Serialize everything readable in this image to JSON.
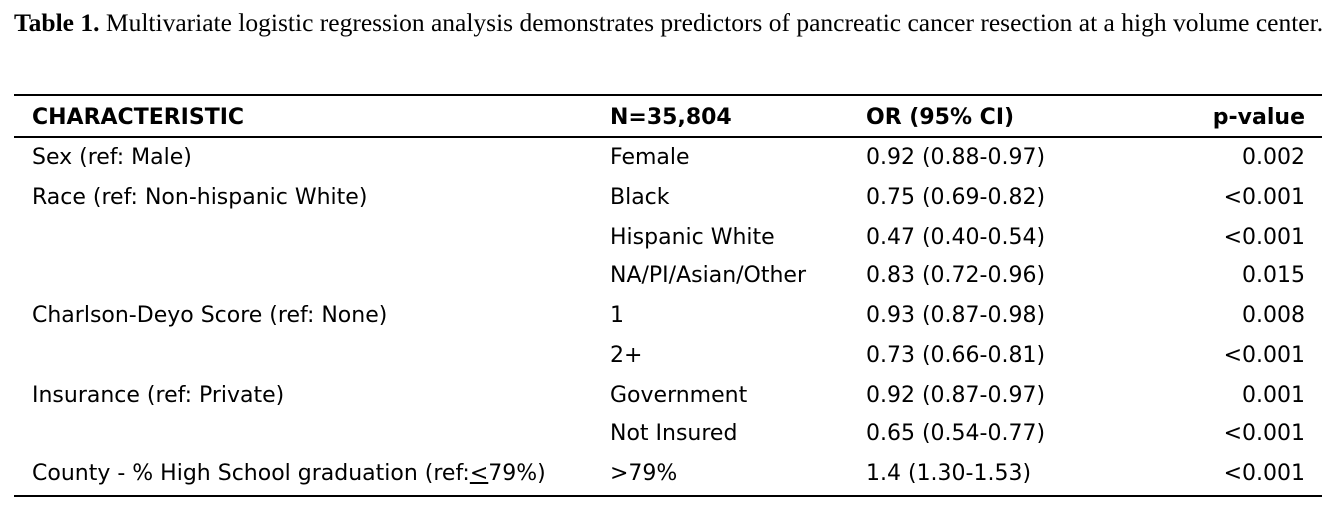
{
  "caption": {
    "label": "Table 1.",
    "text": " Multivariate logistic regression analysis demonstrates predictors of pancreatic cancer resection at a high volume center."
  },
  "table": {
    "headers": [
      "CHARACTERISTIC",
      "N=35,804",
      "OR (95% CI)",
      "p-value"
    ],
    "rows": [
      {
        "characteristic": "Sex (ref: Male)",
        "n": "Female",
        "or": "0.92 (0.88-0.97)",
        "p": "0.002"
      },
      {
        "characteristic": "Race (ref: Non-hispanic White)",
        "n": "Black",
        "or": "0.75 (0.69-0.82)",
        "p": "<0.001"
      },
      {
        "characteristic": "",
        "n": "Hispanic White",
        "or": "0.47 (0.40-0.54)",
        "p": "<0.001"
      },
      {
        "characteristic": "",
        "n": "NA/PI/Asian/Other",
        "or": "0.83 (0.72-0.96)",
        "p": "0.015"
      },
      {
        "characteristic": "Charlson-Deyo Score (ref: None)",
        "n": "1",
        "or": "0.93 (0.87-0.98)",
        "p": "0.008"
      },
      {
        "characteristic": "",
        "n": "2+",
        "or": "0.73 (0.66-0.81)",
        "p": "<0.001"
      },
      {
        "characteristic": "Insurance (ref: Private)",
        "n": "Government",
        "or": "0.92 (0.87-0.97)",
        "p": "0.001"
      },
      {
        "characteristic": "",
        "n": "Not Insured",
        "or": "0.65 (0.54-0.77)",
        "p": "<0.001"
      },
      {
        "characteristic_prefix": "County - % High School graduation (ref:",
        "characteristic_underlined": "<",
        "characteristic_suffix": "79%)",
        "n": ">79%",
        "or": "1.4 (1.30-1.53)",
        "p": "<0.001"
      }
    ]
  }
}
